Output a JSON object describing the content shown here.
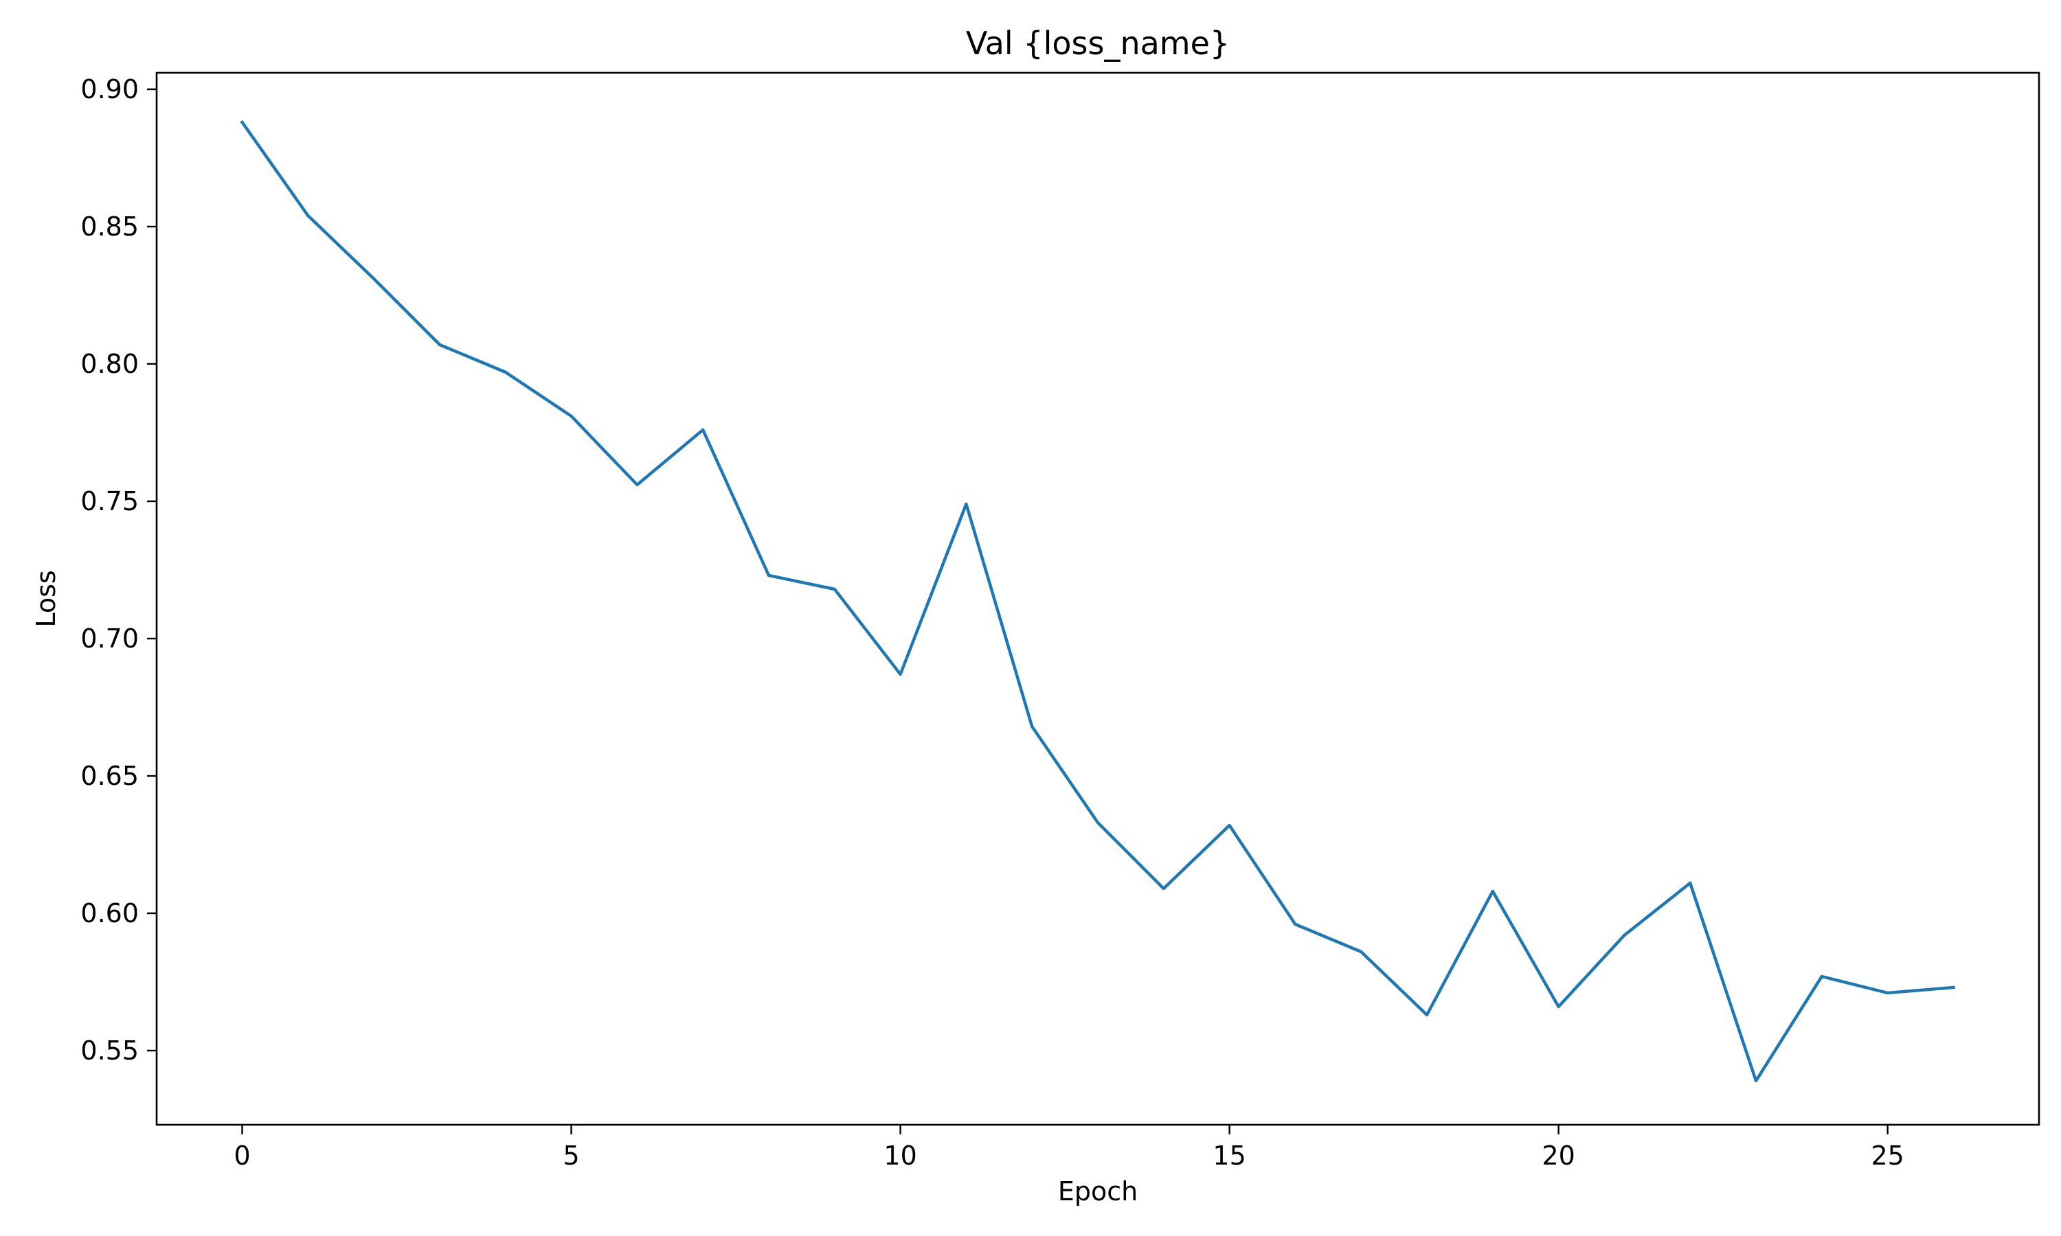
{
  "chart_data": {
    "type": "line",
    "title": "Val {loss_name}",
    "xlabel": "Epoch",
    "ylabel": "Loss",
    "xlim": [
      -1.3,
      27.3
    ],
    "ylim": [
      0.523,
      0.906
    ],
    "xticks": [
      0,
      5,
      10,
      15,
      20,
      25
    ],
    "xtick_labels": [
      "0",
      "5",
      "10",
      "15",
      "20",
      "25"
    ],
    "yticks": [
      0.55,
      0.6,
      0.65,
      0.7,
      0.75,
      0.8,
      0.85,
      0.9
    ],
    "ytick_labels": [
      "0.55",
      "0.60",
      "0.65",
      "0.70",
      "0.75",
      "0.80",
      "0.85",
      "0.90"
    ],
    "grid": false,
    "series": [
      {
        "color": "#1f77b4",
        "x": [
          0,
          1,
          2,
          3,
          4,
          5,
          6,
          7,
          8,
          9,
          10,
          11,
          12,
          13,
          14,
          15,
          16,
          17,
          18,
          19,
          20,
          21,
          22,
          23,
          24,
          25,
          26
        ],
        "values": [
          0.888,
          0.854,
          0.831,
          0.807,
          0.797,
          0.781,
          0.756,
          0.776,
          0.723,
          0.718,
          0.687,
          0.749,
          0.668,
          0.633,
          0.609,
          0.632,
          0.596,
          0.586,
          0.563,
          0.608,
          0.566,
          0.592,
          0.611,
          0.539,
          0.577,
          0.571,
          0.573
        ]
      }
    ]
  }
}
